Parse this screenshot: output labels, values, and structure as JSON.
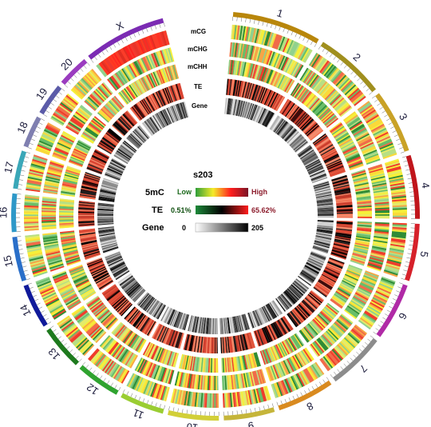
{
  "sample_name": "s203",
  "chromosomes": [
    {
      "label": "1",
      "color": "#b8860b"
    },
    {
      "label": "2",
      "color": "#a08f1e"
    },
    {
      "label": "3",
      "color": "#c9a227"
    },
    {
      "label": "4",
      "color": "#c0151b"
    },
    {
      "label": "5",
      "color": "#d6212a"
    },
    {
      "label": "6",
      "color": "#b02aa6"
    },
    {
      "label": "7",
      "color": "#8c8c8c"
    },
    {
      "label": "8",
      "color": "#d98a1f"
    },
    {
      "label": "9",
      "color": "#c5b53a"
    },
    {
      "label": "10",
      "color": "#d2cf38"
    },
    {
      "label": "11",
      "color": "#9acd32"
    },
    {
      "label": "12",
      "color": "#2fa32f"
    },
    {
      "label": "13",
      "color": "#1e7a1e"
    },
    {
      "label": "14",
      "color": "#101a9a"
    },
    {
      "label": "15",
      "color": "#2a6fc9"
    },
    {
      "label": "16",
      "color": "#2e98c8"
    },
    {
      "label": "17",
      "color": "#3aa7b8"
    },
    {
      "label": "18",
      "color": "#7f7fb0"
    },
    {
      "label": "19",
      "color": "#5b5ba8"
    },
    {
      "label": "20",
      "color": "#9a3cbf"
    },
    {
      "label": "X",
      "color": "#7b2bb3"
    }
  ],
  "tracks": [
    {
      "label": "mCG",
      "type": "5mC"
    },
    {
      "label": "mCHG",
      "type": "5mC"
    },
    {
      "label": "mCHH",
      "type": "5mC"
    },
    {
      "label": "TE",
      "type": "TE"
    },
    {
      "label": "Gene",
      "type": "Gene"
    }
  ],
  "legend": {
    "rows": [
      {
        "name": "5mC",
        "low": "Low",
        "high": "High",
        "gradient": [
          "#2e9e3a",
          "#f4ec2a",
          "#ff1d1d",
          "#7a1426"
        ],
        "low_color": "#1d6a1d",
        "high_color": "#8b1a2a"
      },
      {
        "name": "TE",
        "low": "0.51%",
        "high": "65.62%",
        "gradient": [
          "#1d8a3a",
          "#000000",
          "#ff1d1d"
        ],
        "low_color": "#0f4f0f",
        "high_color": "#8b1a2a"
      },
      {
        "name": "Gene",
        "low": "0",
        "high": "205",
        "gradient": [
          "#ffffff",
          "#000000"
        ],
        "low_color": "#000000",
        "high_color": "#000000"
      }
    ]
  }
}
